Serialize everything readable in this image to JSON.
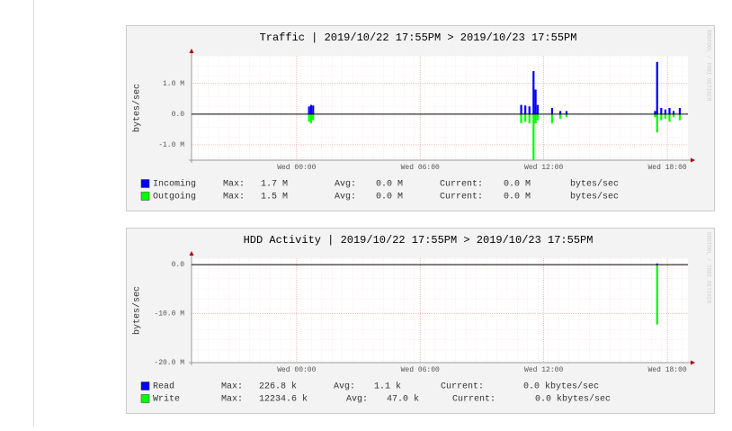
{
  "chart_data": [
    {
      "type": "bar",
      "title": "Traffic | 2019/10/22 17:55PM > 2019/10/23 17:55PM",
      "y_label": "bytes/sec",
      "watermark": "RRDTOOL / TOBI OETIKER",
      "x": [
        0.6,
        0.7,
        0.8,
        10.9,
        11.1,
        11.3,
        11.5,
        11.6,
        11.7,
        12.4,
        12.8,
        13.1,
        17.4,
        17.5,
        17.7,
        17.9,
        18.1,
        18.3,
        18.6
      ],
      "series": [
        {
          "name": "Incoming",
          "color": "#0000ff",
          "values": [
            250000,
            300000,
            280000,
            300000,
            280000,
            250000,
            1400000,
            800000,
            300000,
            200000,
            100000,
            100000,
            100000,
            1700000,
            200000,
            150000,
            200000,
            100000,
            200000
          ],
          "stats": [
            "Max:",
            "1.7 M",
            "Avg:",
            "0.0 M",
            "Current:",
            "0.0 M",
            "bytes/sec"
          ]
        },
        {
          "name": "Outgoing",
          "color": "#00ff00",
          "values": [
            -250000,
            -300000,
            -200000,
            -300000,
            -250000,
            -300000,
            -1500000,
            -300000,
            -200000,
            -300000,
            -150000,
            -100000,
            -100000,
            -600000,
            -200000,
            -150000,
            -250000,
            -100000,
            -200000
          ],
          "stats": [
            "Max:",
            "1.5 M",
            "Avg:",
            "0.0 M",
            "Current:",
            "0.0 M",
            "bytes/sec"
          ]
        }
      ],
      "xlim": [
        -5.1,
        19
      ],
      "xticks": [
        {
          "value": 0,
          "label": "Wed 00:00"
        },
        {
          "value": 6,
          "label": "Wed 06:00"
        },
        {
          "value": 12,
          "label": "Wed 12:00"
        },
        {
          "value": 18,
          "label": "Wed 18:00"
        }
      ],
      "ylim": [
        -1500000,
        1900000
      ],
      "yticks": [
        {
          "value": 1000000,
          "label": "1.0 M"
        },
        {
          "value": 0,
          "label": "0.0"
        },
        {
          "value": -1000000,
          "label": "-1.0 M"
        }
      ],
      "grid": true
    },
    {
      "type": "bar",
      "title": "HDD Activity | 2019/10/22 17:55PM > 2019/10/23 17:55PM",
      "y_label": "bytes/sec",
      "watermark": "RRDTOOL / TOBI OETIKER",
      "x": [
        9.1,
        17.5
      ],
      "series": [
        {
          "name": "Read",
          "color": "#0000ff",
          "values": [
            0,
            226800
          ],
          "stats": [
            "Max:",
            "226.8 k",
            "Avg:",
            "1.1 k",
            "Current:",
            "0.0 kbytes/sec"
          ]
        },
        {
          "name": "Write",
          "color": "#00ff00",
          "values": [
            -100000,
            -12234600
          ],
          "stats": [
            "Max:",
            "12234.6 k",
            "Avg:",
            "47.0 k",
            "Current:",
            "0.0 kbytes/sec"
          ]
        }
      ],
      "xlim": [
        -5.1,
        19
      ],
      "xticks": [
        {
          "value": 0,
          "label": "Wed 00:00"
        },
        {
          "value": 6,
          "label": "Wed 06:00"
        },
        {
          "value": 12,
          "label": "Wed 12:00"
        },
        {
          "value": 18,
          "label": "Wed 18:00"
        }
      ],
      "ylim": [
        -20000000,
        1300000
      ],
      "yticks": [
        {
          "value": 0,
          "label": "0.0"
        },
        {
          "value": -10000000,
          "label": "-10.0 M"
        },
        {
          "value": -20000000,
          "label": "-20.0 M"
        }
      ],
      "grid": true
    }
  ]
}
